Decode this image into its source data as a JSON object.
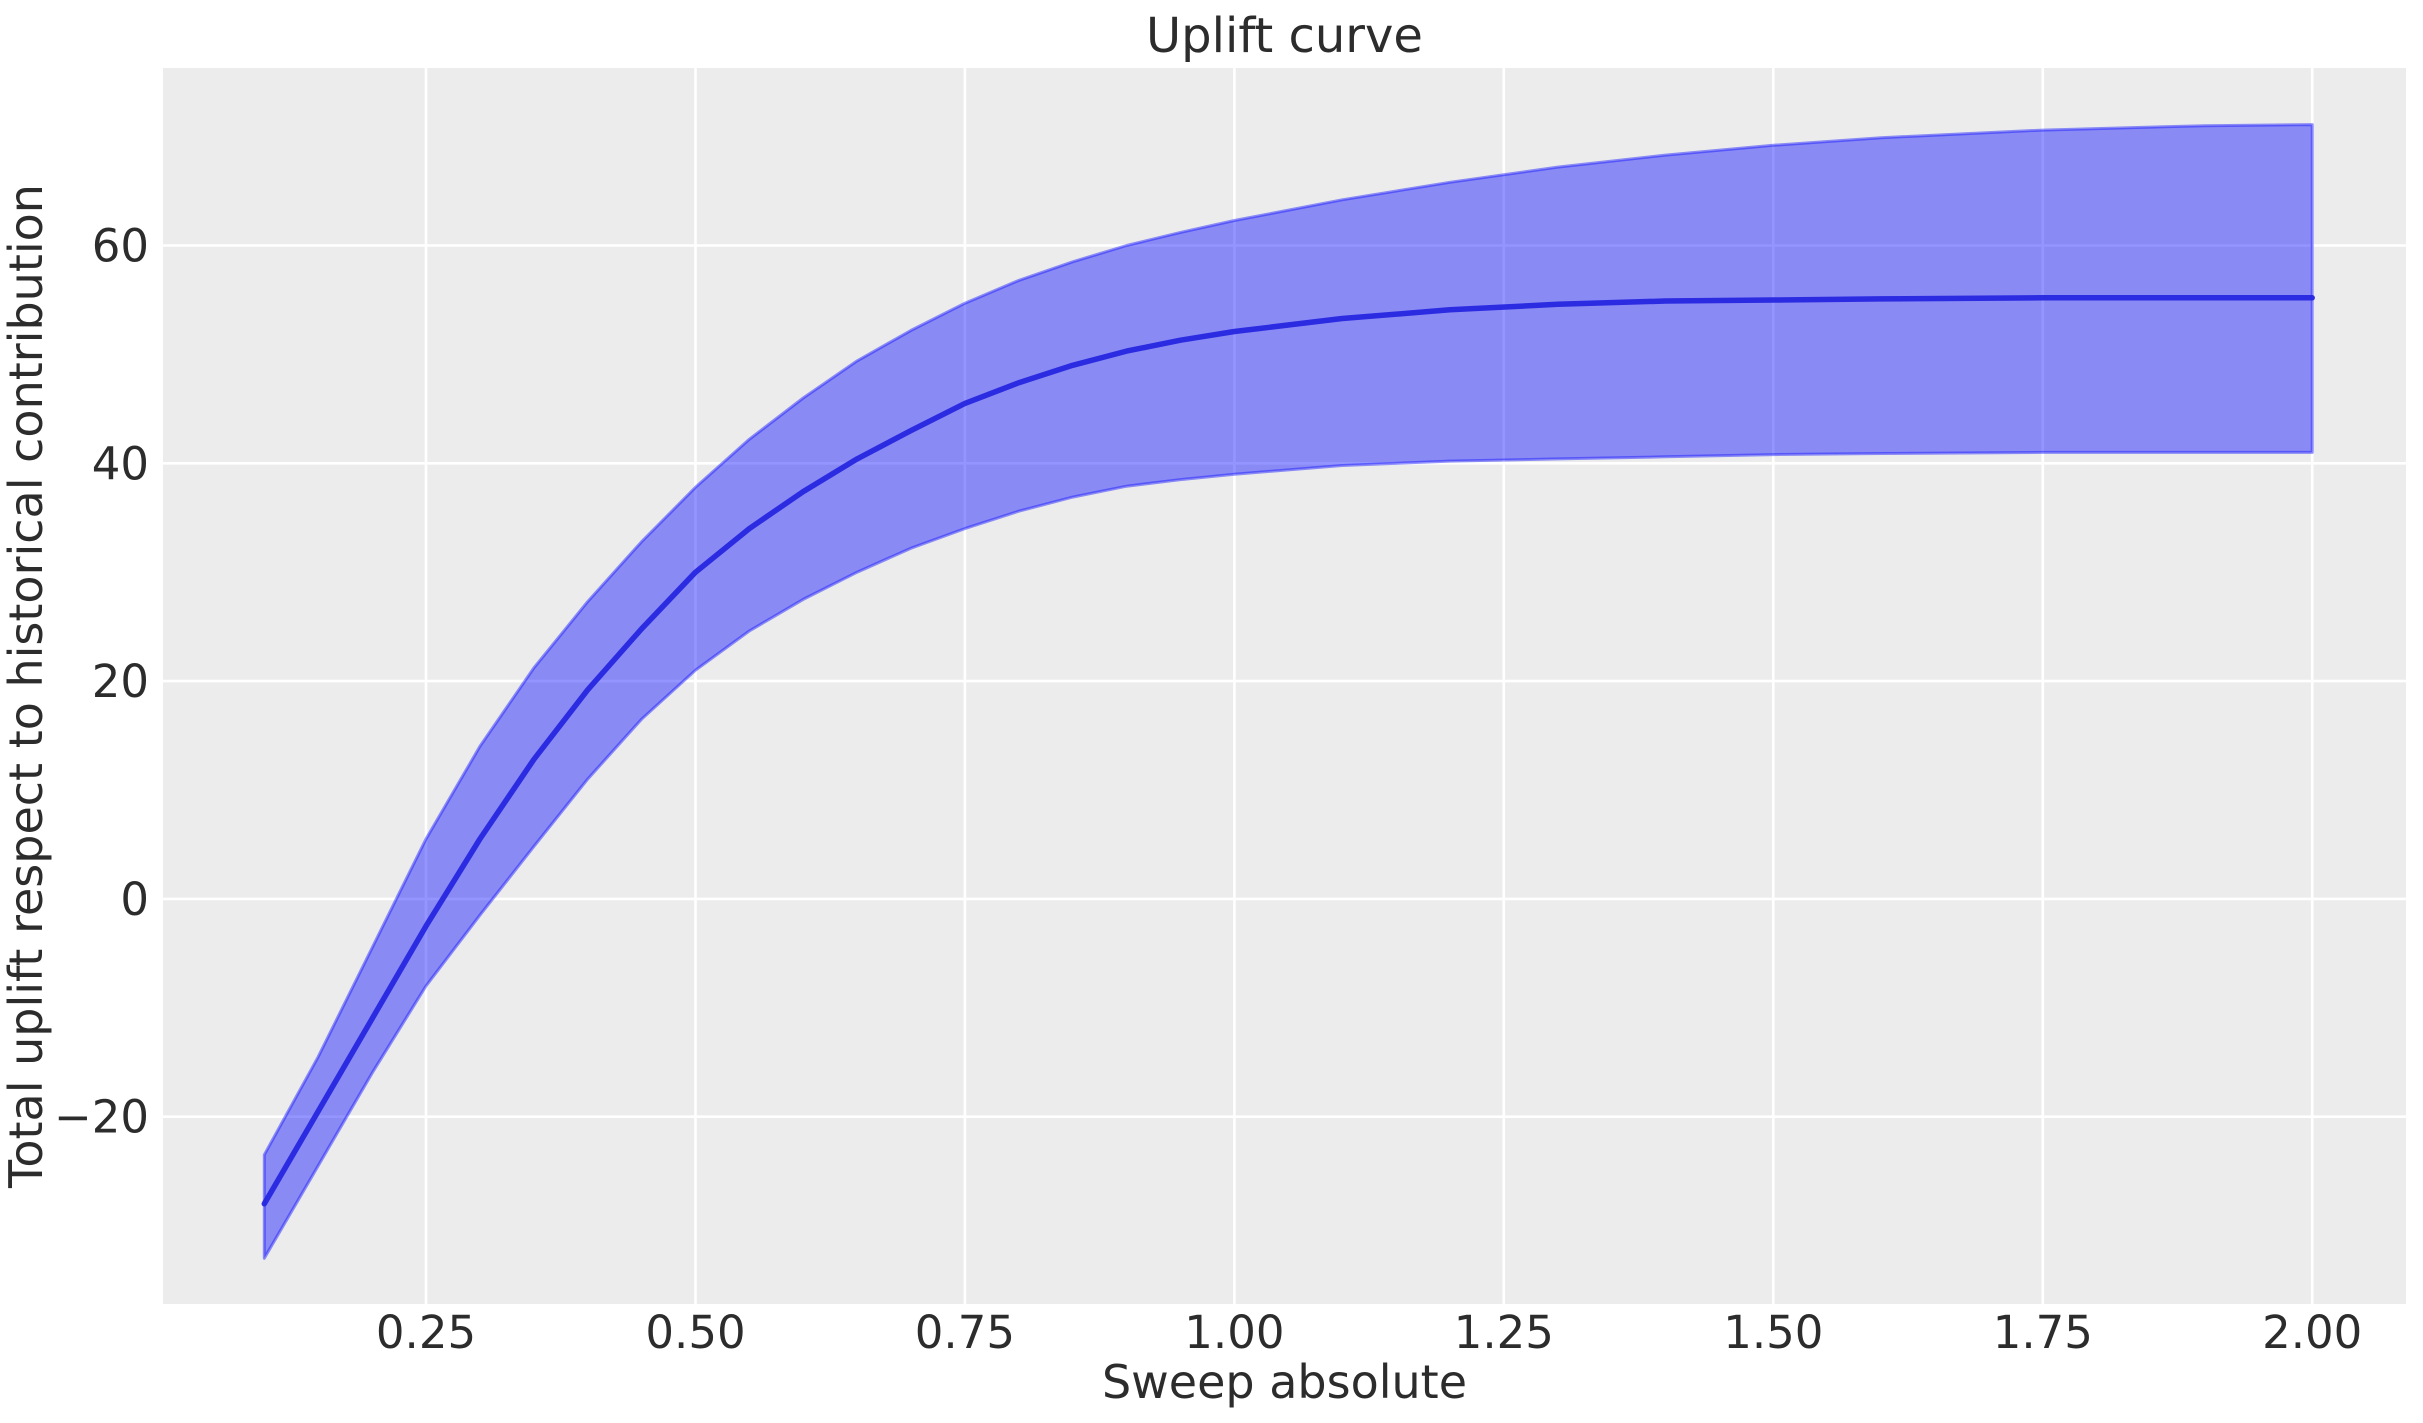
{
  "colors": {
    "figure_background": "#ffffff",
    "plot_background": "#ececec",
    "grid": "#ffffff",
    "text": "#2c2c2c",
    "mean_line": "#2626e0",
    "band_fill": "#1414ff",
    "band_fill_opacity": 0.45,
    "band_edge": "#1414ff",
    "band_edge_opacity": 0.45,
    "mean_line_opacity": 0.95
  },
  "chart_data": {
    "type": "line",
    "title": "Uplift curve",
    "xlabel": "Sweep absolute",
    "ylabel": "Total uplift respect to historical contribution",
    "xlim": [
      0.006,
      2.087
    ],
    "ylim": [
      -37.2,
      76.3
    ],
    "grid": true,
    "legend": false,
    "x_ticks": [
      0.25,
      0.5,
      0.75,
      1.0,
      1.25,
      1.5,
      1.75,
      2.0
    ],
    "x_tick_labels": [
      "0.25",
      "0.50",
      "0.75",
      "1.00",
      "1.25",
      "1.50",
      "1.75",
      "2.00"
    ],
    "y_ticks": [
      -20,
      0,
      20,
      40,
      60
    ],
    "y_tick_labels": [
      "−20",
      "0",
      "20",
      "40",
      "60"
    ],
    "series": [
      {
        "name": "mean-uplift",
        "type": "line",
        "x": [
          0.1,
          0.15,
          0.2,
          0.25,
          0.3,
          0.35,
          0.4,
          0.45,
          0.5,
          0.55,
          0.6,
          0.65,
          0.7,
          0.75,
          0.8,
          0.85,
          0.9,
          0.95,
          1.0,
          1.1,
          1.2,
          1.3,
          1.4,
          1.5,
          1.6,
          1.75,
          1.9,
          2.0
        ],
        "y": [
          -28.0,
          -19.5,
          -11.0,
          -2.5,
          5.5,
          12.8,
          19.2,
          24.8,
          30.0,
          34.0,
          37.4,
          40.4,
          43.0,
          45.5,
          47.4,
          49.0,
          50.3,
          51.3,
          52.1,
          53.3,
          54.1,
          54.6,
          54.9,
          55.0,
          55.1,
          55.2,
          55.2,
          55.2
        ]
      },
      {
        "name": "confidence-band",
        "type": "band",
        "x": [
          0.1,
          0.15,
          0.2,
          0.25,
          0.3,
          0.35,
          0.4,
          0.45,
          0.5,
          0.55,
          0.6,
          0.65,
          0.7,
          0.75,
          0.8,
          0.85,
          0.9,
          0.95,
          1.0,
          1.1,
          1.2,
          1.3,
          1.4,
          1.5,
          1.6,
          1.75,
          1.9,
          2.0
        ],
        "lower": [
          -33.0,
          -24.5,
          -16.0,
          -8.0,
          -1.5,
          4.8,
          11.0,
          16.5,
          21.0,
          24.6,
          27.5,
          30.0,
          32.2,
          34.0,
          35.6,
          36.9,
          37.9,
          38.5,
          39.0,
          39.8,
          40.2,
          40.4,
          40.6,
          40.8,
          40.9,
          41.0,
          41.0,
          41.0
        ],
        "upper": [
          -23.5,
          -14.5,
          -4.5,
          5.5,
          14.0,
          21.2,
          27.3,
          32.8,
          37.8,
          42.2,
          46.0,
          49.4,
          52.2,
          54.7,
          56.8,
          58.5,
          60.0,
          61.2,
          62.3,
          64.2,
          65.8,
          67.2,
          68.3,
          69.2,
          69.9,
          70.6,
          71.0,
          71.1
        ]
      }
    ]
  }
}
